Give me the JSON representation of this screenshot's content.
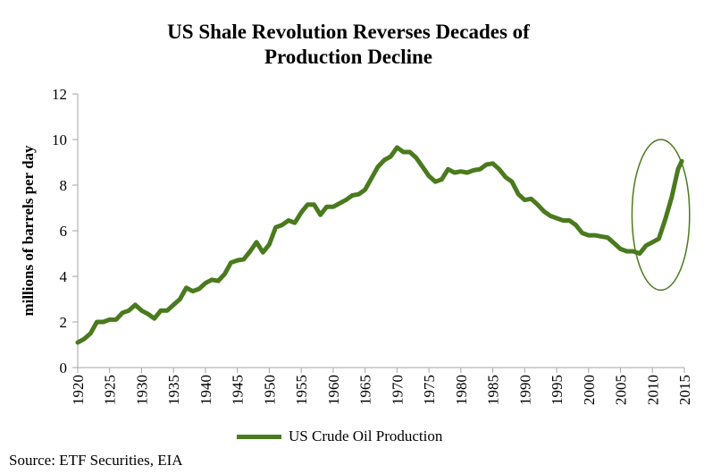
{
  "chart_data": {
    "type": "line",
    "title_lines": [
      "US Shale Revolution Reverses Decades of",
      "Production Decline"
    ],
    "ylabel": "millions of barrels per day",
    "xlabel": "",
    "xlim": [
      1920,
      2015
    ],
    "ylim": [
      0,
      12
    ],
    "x_ticks": [
      1920,
      1925,
      1930,
      1935,
      1940,
      1945,
      1950,
      1955,
      1960,
      1965,
      1970,
      1975,
      1980,
      1985,
      1990,
      1995,
      2000,
      2005,
      2010,
      2015
    ],
    "x_tick_labels": [
      "1920",
      "1925",
      "1930",
      "1935",
      "1940",
      "1945",
      "1950",
      "1955",
      "1960",
      "1965",
      "1970",
      "1975",
      "1980",
      "1985",
      "1990",
      "1995",
      "2000",
      "2005",
      "2010",
      "2015"
    ],
    "y_ticks": [
      0,
      2,
      4,
      6,
      8,
      10,
      12
    ],
    "y_tick_labels": [
      "0",
      "2",
      "4",
      "6",
      "8",
      "10",
      "12"
    ],
    "grid": false,
    "legend_position": "bottom",
    "series": [
      {
        "name": "US Crude Oil Production",
        "color": "#4a7a1e",
        "points": [
          [
            1920,
            1.1
          ],
          [
            1921,
            1.25
          ],
          [
            1922,
            1.5
          ],
          [
            1923,
            2.0
          ],
          [
            1924,
            2.0
          ],
          [
            1925,
            2.1
          ],
          [
            1926,
            2.1
          ],
          [
            1927,
            2.4
          ],
          [
            1928,
            2.5
          ],
          [
            1929,
            2.75
          ],
          [
            1930,
            2.5
          ],
          [
            1931,
            2.35
          ],
          [
            1932,
            2.15
          ],
          [
            1933,
            2.5
          ],
          [
            1934,
            2.5
          ],
          [
            1935,
            2.75
          ],
          [
            1936,
            3.0
          ],
          [
            1937,
            3.5
          ],
          [
            1938,
            3.35
          ],
          [
            1939,
            3.45
          ],
          [
            1940,
            3.7
          ],
          [
            1941,
            3.85
          ],
          [
            1942,
            3.8
          ],
          [
            1943,
            4.1
          ],
          [
            1944,
            4.6
          ],
          [
            1945,
            4.7
          ],
          [
            1946,
            4.75
          ],
          [
            1947,
            5.1
          ],
          [
            1948,
            5.5
          ],
          [
            1949,
            5.05
          ],
          [
            1950,
            5.4
          ],
          [
            1951,
            6.15
          ],
          [
            1952,
            6.25
          ],
          [
            1953,
            6.45
          ],
          [
            1954,
            6.35
          ],
          [
            1955,
            6.8
          ],
          [
            1956,
            7.15
          ],
          [
            1957,
            7.15
          ],
          [
            1958,
            6.7
          ],
          [
            1959,
            7.05
          ],
          [
            1960,
            7.05
          ],
          [
            1961,
            7.2
          ],
          [
            1962,
            7.35
          ],
          [
            1963,
            7.55
          ],
          [
            1964,
            7.6
          ],
          [
            1965,
            7.8
          ],
          [
            1966,
            8.3
          ],
          [
            1967,
            8.8
          ],
          [
            1968,
            9.1
          ],
          [
            1969,
            9.25
          ],
          [
            1970,
            9.65
          ],
          [
            1971,
            9.45
          ],
          [
            1972,
            9.45
          ],
          [
            1973,
            9.2
          ],
          [
            1974,
            8.8
          ],
          [
            1975,
            8.4
          ],
          [
            1976,
            8.15
          ],
          [
            1977,
            8.25
          ],
          [
            1978,
            8.7
          ],
          [
            1979,
            8.55
          ],
          [
            1980,
            8.6
          ],
          [
            1981,
            8.55
          ],
          [
            1982,
            8.65
          ],
          [
            1983,
            8.7
          ],
          [
            1984,
            8.9
          ],
          [
            1985,
            8.95
          ],
          [
            1986,
            8.7
          ],
          [
            1987,
            8.35
          ],
          [
            1988,
            8.15
          ],
          [
            1989,
            7.6
          ],
          [
            1990,
            7.35
          ],
          [
            1991,
            7.4
          ],
          [
            1992,
            7.15
          ],
          [
            1993,
            6.85
          ],
          [
            1994,
            6.65
          ],
          [
            1995,
            6.55
          ],
          [
            1996,
            6.45
          ],
          [
            1997,
            6.45
          ],
          [
            1998,
            6.25
          ],
          [
            1999,
            5.9
          ],
          [
            2000,
            5.8
          ],
          [
            2001,
            5.8
          ],
          [
            2002,
            5.75
          ],
          [
            2003,
            5.7
          ],
          [
            2004,
            5.45
          ],
          [
            2005,
            5.2
          ],
          [
            2006,
            5.1
          ],
          [
            2007,
            5.1
          ],
          [
            2008,
            5.0
          ],
          [
            2009,
            5.35
          ],
          [
            2010,
            5.5
          ],
          [
            2011,
            5.65
          ],
          [
            2012,
            6.5
          ],
          [
            2013,
            7.45
          ],
          [
            2014,
            8.7
          ],
          [
            2014.6,
            9.05
          ]
        ]
      }
    ],
    "annotations": [
      {
        "type": "ellipse",
        "description": "circle highlighting shale production surge",
        "x_range": [
          2006.8,
          2015.8
        ],
        "y_range": [
          3.4,
          10.0
        ]
      }
    ]
  },
  "source_text": "Source: ETF Securities, EIA"
}
